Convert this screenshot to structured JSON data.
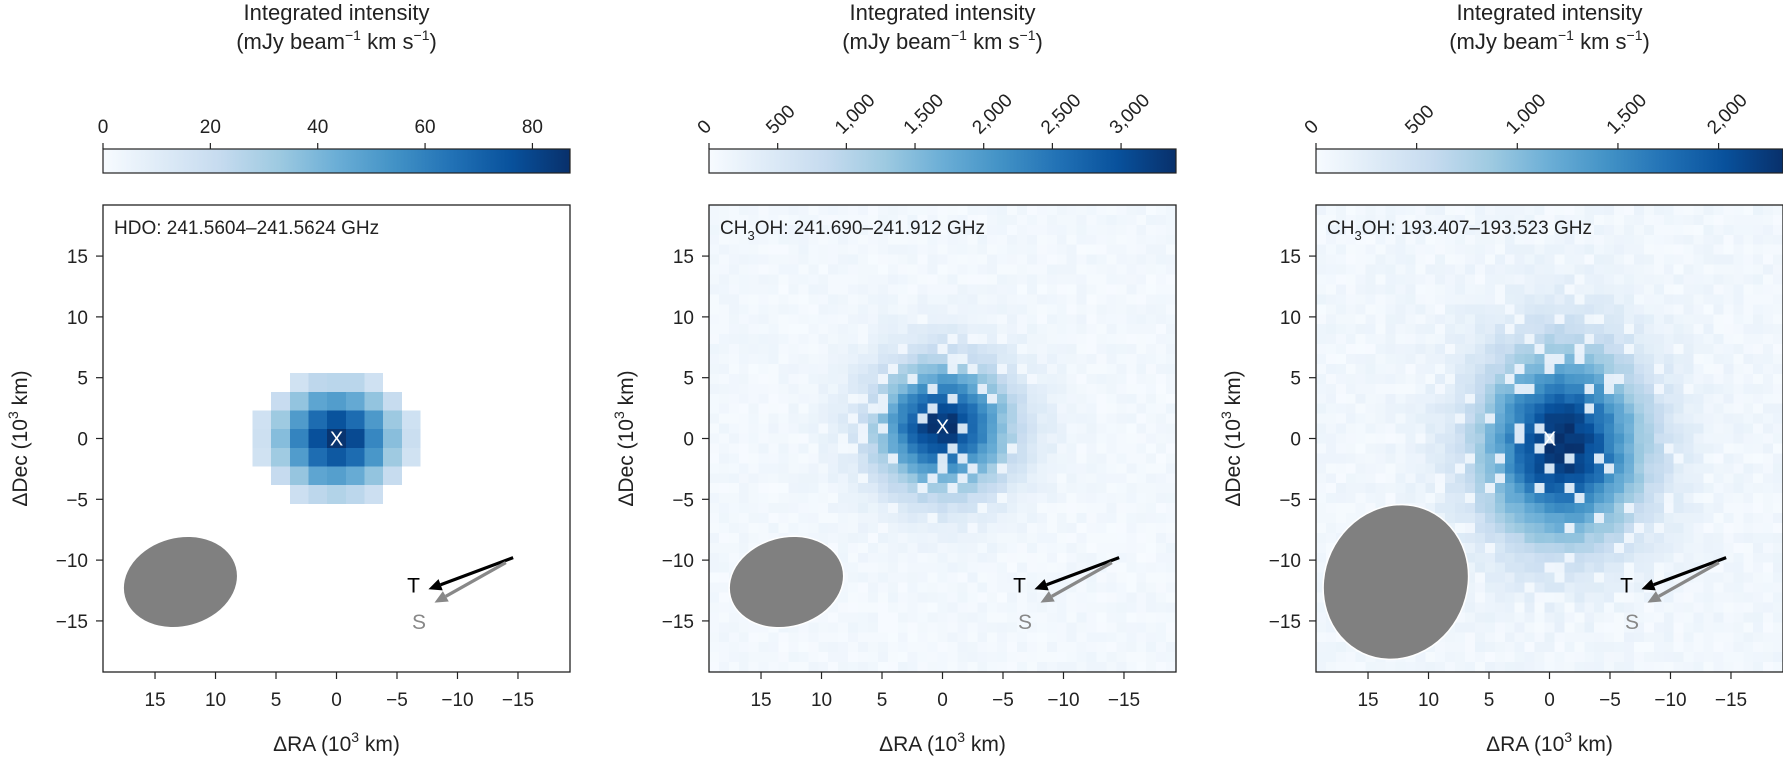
{
  "chart_data": [
    {
      "type": "heatmap",
      "colormap": "Blues",
      "colorbar": {
        "title": "Integrated intensity",
        "unit_parts": [
          "(mJy beam",
          "−1",
          " km s",
          "−1",
          ")"
        ],
        "range": [
          0,
          87
        ],
        "ticks": [
          0,
          20,
          40,
          60,
          80
        ],
        "tick_labels": [
          "0",
          "20",
          "40",
          "60",
          "80"
        ],
        "rotated_labels": false
      },
      "label": {
        "pre": "HDO: 241.5604–241.5624 GHz",
        "sub": "",
        "post": ""
      },
      "xlabel_parts": [
        "ΔRA (10",
        "3",
        " km)"
      ],
      "ylabel_parts": [
        "ΔDec (10",
        "3",
        " km)"
      ],
      "xlim": [
        19.3,
        -19.3
      ],
      "ylim": [
        -19.2,
        19.2
      ],
      "xticks": [
        15,
        10,
        5,
        0,
        -5,
        -10,
        -15
      ],
      "xtick_labels": [
        "15",
        "10",
        "5",
        "0",
        "−5",
        "−10",
        "−15"
      ],
      "yticks": [
        15,
        10,
        5,
        0,
        -5,
        -10,
        -15
      ],
      "ytick_labels": [
        "15",
        "10",
        "5",
        "0",
        "−5",
        "−10",
        "−15"
      ],
      "emission": {
        "center": [
          0,
          0
        ],
        "peak": 85,
        "sigma": [
          3.6,
          3.0
        ],
        "cutoff": 12,
        "background": 0,
        "cell": 1.55
      },
      "marker": {
        "label": "X",
        "position": [
          0,
          0
        ]
      },
      "beam": {
        "center": [
          12.9,
          -11.8
        ],
        "axes": [
          9.6,
          7.4
        ],
        "angle_deg": -15,
        "color": "#808080"
      },
      "arrows": [
        {
          "label": "T",
          "from": [
            -14.6,
            -9.8
          ],
          "to": [
            -7.6,
            -12.4
          ],
          "color": "#000000",
          "label_pos": [
            -6.9,
            -12.0
          ]
        },
        {
          "label": "S",
          "from": [
            -14.0,
            -10.2
          ],
          "to": [
            -8.1,
            -13.5
          ],
          "color": "#888888",
          "label_pos": [
            -7.4,
            -15.0
          ]
        }
      ]
    },
    {
      "type": "heatmap",
      "colormap": "Blues",
      "colorbar": {
        "title": "Integrated intensity",
        "unit_parts": [
          "(mJy beam",
          "−1",
          " km s",
          "−1",
          ")"
        ],
        "range": [
          0,
          3400
        ],
        "ticks": [
          0,
          500,
          1000,
          1500,
          2000,
          2500,
          3000
        ],
        "tick_labels": [
          "0",
          "500",
          "1,000",
          "1,500",
          "2,000",
          "2,500",
          "3,000"
        ],
        "rotated_labels": true
      },
      "label": {
        "pre": "CH",
        "sub": "3",
        "post": "OH: 241.690–241.912 GHz"
      },
      "xlabel_parts": [
        "ΔRA (10",
        "3",
        " km)"
      ],
      "ylabel_parts": [
        "ΔDec (10",
        "3",
        " km)"
      ],
      "xlim": [
        19.3,
        -19.3
      ],
      "ylim": [
        -19.2,
        19.2
      ],
      "xticks": [
        15,
        10,
        5,
        0,
        -5,
        -10,
        -15
      ],
      "xtick_labels": [
        "15",
        "10",
        "5",
        "0",
        "−5",
        "−10",
        "−15"
      ],
      "yticks": [
        15,
        10,
        5,
        0,
        -5,
        -10,
        -15
      ],
      "ytick_labels": [
        "15",
        "10",
        "5",
        "0",
        "−5",
        "−10",
        "−15"
      ],
      "emission": {
        "center": [
          0,
          1
        ],
        "peak": 3250,
        "sigma": [
          3.8,
          3.6
        ],
        "cutoff": 0,
        "background": 110,
        "cell": 0.82
      },
      "marker": {
        "label": "X",
        "position": [
          0,
          1
        ]
      },
      "beam": {
        "center": [
          12.9,
          -11.8
        ],
        "axes": [
          9.6,
          7.4
        ],
        "angle_deg": -15,
        "color": "#808080"
      },
      "arrows": [
        {
          "label": "T",
          "from": [
            -14.6,
            -9.8
          ],
          "to": [
            -7.6,
            -12.4
          ],
          "color": "#000000",
          "label_pos": [
            -6.9,
            -12.0
          ]
        },
        {
          "label": "S",
          "from": [
            -14.0,
            -10.2
          ],
          "to": [
            -8.1,
            -13.5
          ],
          "color": "#888888",
          "label_pos": [
            -7.4,
            -15.0
          ]
        }
      ]
    },
    {
      "type": "heatmap",
      "colormap": "Blues",
      "colorbar": {
        "title": "Integrated intensity",
        "unit_parts": [
          "(mJy beam",
          "−1",
          " km s",
          "−1",
          ")"
        ],
        "range": [
          0,
          2320
        ],
        "ticks": [
          0,
          500,
          1000,
          1500,
          2000
        ],
        "tick_labels": [
          "0",
          "500",
          "1,000",
          "1,500",
          "2,000"
        ],
        "rotated_labels": true
      },
      "label": {
        "pre": "CH",
        "sub": "3",
        "post": "OH: 193.407–193.523 GHz"
      },
      "xlabel_parts": [
        "ΔRA (10",
        "3",
        " km)"
      ],
      "ylabel_parts": [
        "ΔDec (10",
        "3",
        " km)"
      ],
      "xlim": [
        19.3,
        -19.3
      ],
      "ylim": [
        -19.2,
        19.2
      ],
      "xticks": [
        15,
        10,
        5,
        0,
        -5,
        -10,
        -15
      ],
      "xtick_labels": [
        "15",
        "10",
        "5",
        "0",
        "−5",
        "−10",
        "−15"
      ],
      "yticks": [
        15,
        10,
        5,
        0,
        -5,
        -10,
        -15
      ],
      "ytick_labels": [
        "15",
        "10",
        "5",
        "0",
        "−5",
        "−10",
        "−15"
      ],
      "emission": {
        "center": [
          -1,
          -0.5
        ],
        "peak": 2250,
        "sigma": [
          4.6,
          5.4
        ],
        "cutoff": 0,
        "background": 90,
        "cell": 0.82
      },
      "marker": {
        "label": "X",
        "position": [
          0,
          0
        ]
      },
      "beam": {
        "center": [
          12.7,
          -11.8
        ],
        "axes": [
          11.8,
          13.0
        ],
        "angle_deg": 25,
        "color": "#808080"
      },
      "arrows": [
        {
          "label": "T",
          "from": [
            -14.6,
            -9.8
          ],
          "to": [
            -7.6,
            -12.4
          ],
          "color": "#000000",
          "label_pos": [
            -6.9,
            -12.0
          ]
        },
        {
          "label": "S",
          "from": [
            -14.0,
            -10.2
          ],
          "to": [
            -8.1,
            -13.5
          ],
          "color": "#888888",
          "label_pos": [
            -7.4,
            -15.0
          ]
        }
      ]
    }
  ]
}
